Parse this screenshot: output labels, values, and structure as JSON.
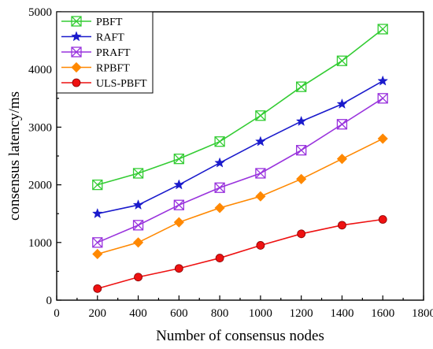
{
  "chart_data": {
    "type": "line",
    "title": "",
    "xlabel": "Number of consensus nodes",
    "ylabel": "consensus latency/ms",
    "xlim": [
      0,
      1800
    ],
    "ylim": [
      0,
      5000
    ],
    "xticks": [
      0,
      200,
      400,
      600,
      800,
      1000,
      1200,
      1400,
      1600,
      1800
    ],
    "yticks": [
      0,
      1000,
      2000,
      3000,
      4000,
      5000
    ],
    "x": [
      200,
      400,
      600,
      800,
      1000,
      1200,
      1400,
      1600
    ],
    "grid": false,
    "legend_position": "top-left",
    "series": [
      {
        "name": "PBFT",
        "color": "#33cc33",
        "marker": "x-square",
        "values": [
          2000,
          2200,
          2450,
          2750,
          3200,
          3700,
          4150,
          4700
        ]
      },
      {
        "name": "RAFT",
        "color": "#1a1acc",
        "marker": "star",
        "values": [
          1500,
          1650,
          2000,
          2380,
          2750,
          3100,
          3400,
          3800
        ]
      },
      {
        "name": "PRAFT",
        "color": "#9933dd",
        "marker": "x-square",
        "values": [
          1000,
          1300,
          1650,
          1950,
          2200,
          2600,
          3050,
          3500
        ]
      },
      {
        "name": "RPBFT",
        "color": "#ff8800",
        "marker": "diamond",
        "values": [
          800,
          1000,
          1350,
          1600,
          1800,
          2100,
          2450,
          2800
        ]
      },
      {
        "name": "ULS-PBFT",
        "color": "#ee1111",
        "marker": "circle",
        "values": [
          200,
          400,
          550,
          730,
          950,
          1150,
          1300,
          1400
        ]
      }
    ]
  }
}
